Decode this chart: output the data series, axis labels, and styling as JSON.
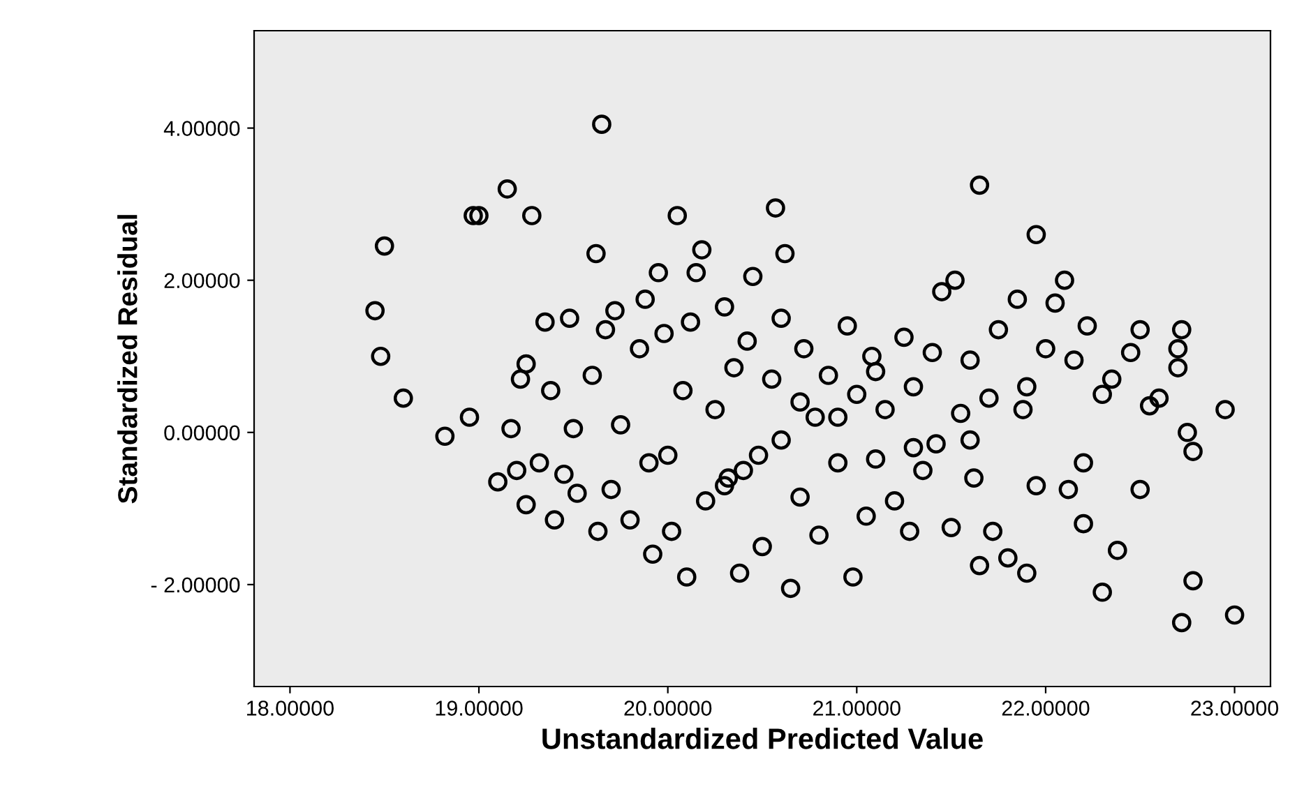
{
  "chart_data": {
    "type": "scatter",
    "xlabel": "Unstandardized Predicted Value",
    "ylabel": "Standardized Residual",
    "xlim": [
      17.81,
      23.19
    ],
    "ylim": [
      -3.34,
      5.28
    ],
    "xticks": [
      {
        "value": 18,
        "label": "18.00000"
      },
      {
        "value": 19,
        "label": "19.00000"
      },
      {
        "value": 20,
        "label": "20.00000"
      },
      {
        "value": 21,
        "label": "21.00000"
      },
      {
        "value": 22,
        "label": "22.00000"
      },
      {
        "value": 23,
        "label": "23.00000"
      }
    ],
    "yticks": [
      {
        "value": -2,
        "label": "- 2.00000"
      },
      {
        "value": 0,
        "label": "0.00000"
      },
      {
        "value": 2,
        "label": "2.00000"
      },
      {
        "value": 4,
        "label": "4.00000"
      }
    ],
    "grid": false,
    "marker": "circle",
    "series": [
      {
        "color": "#000000",
        "x": [
          18.45,
          18.48,
          18.5,
          18.6,
          18.82,
          18.95,
          18.97,
          19.0,
          19.1,
          19.15,
          19.17,
          19.2,
          19.22,
          19.25,
          19.25,
          19.28,
          19.32,
          19.35,
          19.38,
          19.4,
          19.45,
          19.48,
          19.5,
          19.52,
          19.6,
          19.62,
          19.65,
          19.63,
          19.67,
          19.7,
          19.72,
          19.75,
          19.8,
          19.85,
          19.88,
          19.9,
          19.92,
          19.95,
          19.98,
          20.0,
          20.02,
          20.05,
          20.08,
          20.1,
          20.12,
          20.15,
          20.18,
          20.2,
          20.25,
          20.3,
          20.32,
          20.35,
          20.38,
          20.42,
          20.45,
          20.48,
          20.5,
          20.55,
          20.57,
          20.6,
          20.62,
          20.65,
          20.7,
          20.72,
          20.78,
          20.8,
          20.85,
          20.9,
          20.95,
          20.98,
          21.0,
          21.05,
          21.08,
          21.1,
          21.15,
          21.2,
          21.25,
          21.28,
          21.3,
          21.35,
          21.4,
          21.42,
          21.45,
          21.5,
          21.52,
          21.55,
          21.6,
          21.62,
          21.65,
          21.65,
          21.7,
          21.72,
          21.75,
          21.8,
          21.85,
          21.88,
          21.9,
          21.95,
          21.95,
          22.0,
          22.05,
          22.1,
          22.12,
          22.15,
          22.2,
          22.22,
          22.3,
          22.3,
          22.35,
          22.38,
          22.45,
          22.5,
          22.5,
          22.55,
          22.6,
          22.7,
          22.7,
          22.72,
          22.72,
          22.75,
          22.78,
          22.78,
          22.95,
          23.0,
          20.4,
          20.6,
          20.9,
          21.3,
          21.1,
          20.3,
          20.7,
          21.6,
          21.9,
          22.2
        ],
        "values": [
          1.6,
          1.0,
          2.45,
          0.45,
          -0.05,
          0.2,
          2.85,
          2.85,
          -0.65,
          3.2,
          0.05,
          -0.5,
          0.7,
          0.9,
          -0.95,
          2.85,
          -0.4,
          1.45,
          0.55,
          -1.15,
          -0.55,
          1.5,
          0.05,
          -0.8,
          0.75,
          2.35,
          4.05,
          -1.3,
          1.35,
          -0.75,
          1.6,
          0.1,
          -1.15,
          1.1,
          1.75,
          -0.4,
          -1.6,
          2.1,
          1.3,
          -0.3,
          -1.3,
          2.85,
          0.55,
          -1.9,
          1.45,
          2.1,
          2.4,
          -0.9,
          0.3,
          1.65,
          -0.6,
          0.85,
          -1.85,
          1.2,
          2.05,
          -0.3,
          -1.5,
          0.7,
          2.95,
          1.5,
          2.35,
          -2.05,
          -0.85,
          1.1,
          0.2,
          -1.35,
          0.75,
          -0.4,
          1.4,
          -1.9,
          0.5,
          -1.1,
          1.0,
          -0.35,
          0.3,
          -0.9,
          1.25,
          -1.3,
          0.6,
          -0.5,
          1.05,
          -0.15,
          1.85,
          -1.25,
          2.0,
          0.25,
          0.95,
          -0.6,
          3.25,
          -1.75,
          0.45,
          -1.3,
          1.35,
          -1.65,
          1.75,
          0.3,
          -1.85,
          2.6,
          -0.7,
          1.1,
          1.7,
          2.0,
          -0.75,
          0.95,
          -1.2,
          1.4,
          0.5,
          -2.1,
          0.7,
          -1.55,
          1.05,
          -0.75,
          1.35,
          0.35,
          0.45,
          1.1,
          0.85,
          1.35,
          -2.5,
          0.0,
          -0.25,
          -1.95,
          0.3,
          -2.4,
          -0.5,
          -0.1,
          0.2,
          -0.2,
          0.8,
          -0.7,
          0.4,
          -0.1,
          0.6,
          -0.4
        ]
      }
    ]
  }
}
